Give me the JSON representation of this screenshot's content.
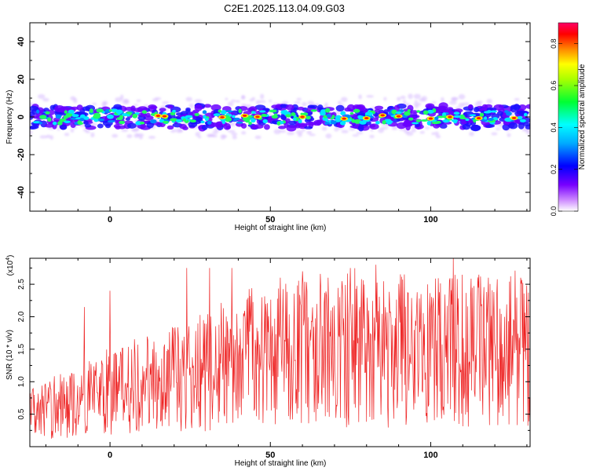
{
  "title": "C2E1.2025.113.04.09.G03",
  "chart_data": [
    {
      "type": "heatmap",
      "title": "",
      "xlabel": "Height of straight line (km)",
      "ylabel": "Frequency (Hz)",
      "xlim": [
        -25,
        131
      ],
      "ylim": [
        -50,
        50
      ],
      "x_ticks": [
        "0",
        "50",
        "100"
      ],
      "y_ticks": [
        "40",
        "20",
        "0",
        "-20",
        "-40"
      ],
      "band": {
        "center_hz": 0,
        "half_width_hz": 5
      },
      "colorbar": {
        "label": "Normalized spectral amplitude",
        "range": [
          0,
          0.9
        ],
        "ticks": [
          "0.0",
          "0.2",
          "0.4",
          "0.6",
          "0.8"
        ],
        "colors": [
          "#ffffff",
          "#7700ff",
          "#0000ff",
          "#00ffff",
          "#00ff00",
          "#ffff00",
          "#ff7700",
          "#ff0000",
          "#ff0066"
        ]
      },
      "hotspots_km": [
        15,
        17,
        35,
        42,
        46,
        60,
        73,
        80,
        85,
        90,
        100,
        106,
        115,
        126
      ]
    },
    {
      "type": "line",
      "title": "",
      "xlabel": "Height of straight line (km)",
      "ylabel": "SNR (10 * v/v)",
      "y_multiplier": "(x10",
      "y_multiplier_exp": "4",
      "y_multiplier_close": ")",
      "xlim": [
        -25,
        131
      ],
      "ylim": [
        0,
        2.9
      ],
      "x_ticks": [
        "0",
        "50",
        "100"
      ],
      "y_ticks": [
        "0.5",
        "1.0",
        "1.5",
        "2.0",
        "2.5"
      ],
      "series_color": "#ee2222",
      "trend": [
        {
          "x": -25,
          "y": 0.5
        },
        {
          "x": 0,
          "y": 0.8
        },
        {
          "x": 25,
          "y": 1.1
        },
        {
          "x": 50,
          "y": 1.35
        },
        {
          "x": 75,
          "y": 1.45
        },
        {
          "x": 100,
          "y": 1.5
        },
        {
          "x": 131,
          "y": 1.45
        }
      ],
      "peaks": [
        {
          "x": 0,
          "y": 2.4
        },
        {
          "x": -8,
          "y": 2.15
        },
        {
          "x": 24,
          "y": 2.75
        },
        {
          "x": 31,
          "y": 2.75
        },
        {
          "x": 38,
          "y": 2.75
        },
        {
          "x": 53,
          "y": 2.6
        },
        {
          "x": 60,
          "y": 2.7
        },
        {
          "x": 68,
          "y": 2.6
        },
        {
          "x": 75,
          "y": 2.75
        },
        {
          "x": 83,
          "y": 2.8
        },
        {
          "x": 107,
          "y": 2.9
        },
        {
          "x": 118,
          "y": 2.6
        },
        {
          "x": 128,
          "y": 2.6
        }
      ]
    }
  ]
}
